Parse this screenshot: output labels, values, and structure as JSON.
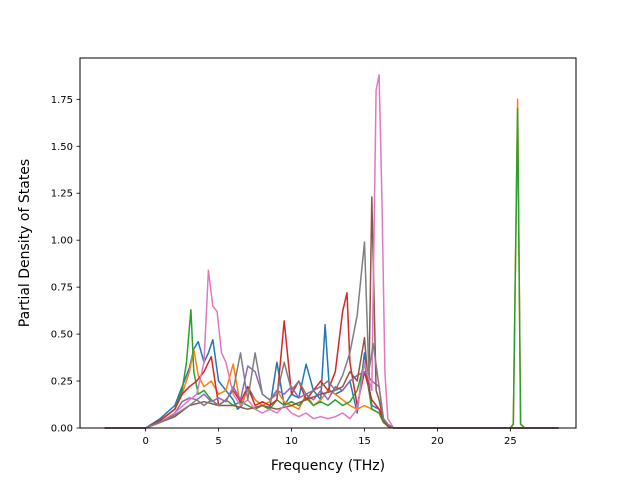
{
  "chart_data": {
    "type": "line",
    "title": "",
    "xlabel": "Frequency (THz)",
    "ylabel": "Partial Density of States",
    "xlim": [
      -4.5,
      29.5
    ],
    "ylim": [
      0,
      1.97
    ],
    "x_ticks": [
      0,
      5,
      10,
      15,
      20,
      25
    ],
    "y_ticks": [
      0.0,
      0.25,
      0.5,
      0.75,
      1.0,
      1.25,
      1.5,
      1.75
    ],
    "x_tick_labels": [
      "0",
      "5",
      "10",
      "15",
      "20",
      "25"
    ],
    "y_tick_labels": [
      "0.00",
      "0.25",
      "0.50",
      "0.75",
      "1.00",
      "1.25",
      "1.50",
      "1.75"
    ],
    "grid": false,
    "legend": "none",
    "series": [
      {
        "color": "#1f77b4",
        "x": [
          -2.8,
          0,
          1,
          2,
          2.5,
          3,
          3.3,
          3.6,
          4,
          4.3,
          4.6,
          5,
          5.5,
          6,
          6.3,
          6.6,
          7,
          7.5,
          8,
          8.5,
          9,
          9.5,
          10,
          10.5,
          11,
          11.5,
          12,
          12.3,
          12.6,
          13,
          13.5,
          14,
          14.5,
          15,
          15.5,
          16,
          16.3,
          16.6,
          17,
          25,
          28.3
        ],
        "y": [
          0,
          0,
          0.05,
          0.12,
          0.22,
          0.32,
          0.42,
          0.46,
          0.35,
          0.4,
          0.47,
          0.25,
          0.2,
          0.15,
          0.1,
          0.12,
          0.22,
          0.15,
          0.12,
          0.1,
          0.35,
          0.12,
          0.18,
          0.16,
          0.34,
          0.2,
          0.15,
          0.55,
          0.2,
          0.18,
          0.2,
          0.25,
          0.08,
          0.4,
          0.12,
          0.1,
          0.05,
          0.02,
          0,
          0,
          0
        ]
      },
      {
        "color": "#ff7f0e",
        "x": [
          -2.8,
          0,
          1,
          2,
          2.5,
          3,
          3.3,
          3.6,
          4,
          4.5,
          5,
          5.5,
          6,
          6.5,
          7,
          7.5,
          8,
          8.5,
          9,
          9.5,
          10,
          10.5,
          11,
          11.5,
          12,
          12.5,
          13,
          13.5,
          14,
          14.5,
          15,
          15.5,
          16,
          16.3,
          16.6,
          17,
          25,
          25.2,
          25.5,
          25.7,
          26,
          28.3
        ],
        "y": [
          0,
          0,
          0.04,
          0.1,
          0.18,
          0.3,
          0.42,
          0.28,
          0.22,
          0.25,
          0.18,
          0.2,
          0.34,
          0.12,
          0.2,
          0.15,
          0.12,
          0.14,
          0.2,
          0.14,
          0.12,
          0.1,
          0.18,
          0.12,
          0.15,
          0.2,
          0.18,
          0.15,
          0.12,
          0.1,
          0.12,
          0.1,
          0.08,
          0.03,
          0.01,
          0,
          0,
          0.02,
          1.75,
          0.02,
          0,
          0
        ]
      },
      {
        "color": "#2ca02c",
        "x": [
          -2.8,
          0,
          1,
          2,
          2.5,
          2.8,
          3.1,
          3.3,
          3.6,
          4,
          4.5,
          5,
          5.5,
          6,
          6.5,
          7,
          7.5,
          8,
          8.5,
          9,
          9.5,
          10,
          10.5,
          11,
          11.5,
          12,
          12.5,
          13,
          13.5,
          14,
          14.5,
          15,
          15.5,
          16,
          16.3,
          16.6,
          17,
          25,
          25.2,
          25.5,
          25.7,
          26,
          28.3
        ],
        "y": [
          0,
          0,
          0.04,
          0.1,
          0.2,
          0.35,
          0.63,
          0.3,
          0.18,
          0.2,
          0.15,
          0.12,
          0.15,
          0.12,
          0.14,
          0.12,
          0.1,
          0.12,
          0.1,
          0.15,
          0.12,
          0.14,
          0.12,
          0.16,
          0.12,
          0.14,
          0.12,
          0.15,
          0.12,
          0.14,
          0.2,
          0.35,
          0.1,
          0.08,
          0.03,
          0.01,
          0,
          0,
          0.02,
          1.7,
          0.02,
          0,
          0
        ]
      },
      {
        "color": "#d62728",
        "x": [
          -2.8,
          0,
          1,
          2,
          2.5,
          3,
          3.5,
          4,
          4.5,
          5,
          5.5,
          6,
          6.5,
          7,
          7.5,
          8,
          8.5,
          9,
          9.5,
          10,
          10.5,
          11,
          11.5,
          12,
          12.5,
          13,
          13.5,
          13.8,
          14,
          14.5,
          15,
          15.5,
          16,
          16.3,
          16.6,
          17,
          28.3
        ],
        "y": [
          0,
          0,
          0.04,
          0.1,
          0.18,
          0.22,
          0.25,
          0.3,
          0.38,
          0.12,
          0.15,
          0.2,
          0.14,
          0.22,
          0.12,
          0.14,
          0.12,
          0.15,
          0.57,
          0.18,
          0.25,
          0.15,
          0.2,
          0.25,
          0.2,
          0.3,
          0.62,
          0.72,
          0.35,
          0.12,
          0.3,
          0.15,
          0.1,
          0.04,
          0.01,
          0,
          0
        ]
      },
      {
        "color": "#9467bd",
        "x": [
          -2.8,
          0,
          1,
          2,
          2.5,
          3,
          3.5,
          4,
          4.5,
          5,
          5.5,
          6,
          6.5,
          7,
          7.5,
          8,
          8.5,
          9,
          9.5,
          10,
          10.5,
          11,
          11.5,
          12,
          12.5,
          13,
          13.5,
          14,
          14.5,
          15,
          15.5,
          16,
          16.3,
          16.6,
          17,
          28.3
        ],
        "y": [
          0,
          0,
          0.03,
          0.08,
          0.14,
          0.16,
          0.15,
          0.18,
          0.14,
          0.16,
          0.14,
          0.22,
          0.15,
          0.33,
          0.3,
          0.18,
          0.15,
          0.2,
          0.18,
          0.22,
          0.16,
          0.18,
          0.15,
          0.2,
          0.15,
          0.22,
          0.2,
          0.25,
          0.28,
          0.3,
          0.25,
          0.22,
          0.05,
          0.02,
          0,
          0
        ]
      },
      {
        "color": "#8c564b",
        "x": [
          -2.8,
          0,
          1,
          2,
          3,
          4,
          5,
          6,
          7,
          8,
          9,
          10,
          11,
          12,
          13,
          13.5,
          14,
          14.5,
          15,
          15.3,
          15.5,
          15.8,
          16,
          16.3,
          16.6,
          17,
          28.3
        ],
        "y": [
          0,
          0,
          0.03,
          0.06,
          0.12,
          0.14,
          0.12,
          0.12,
          0.1,
          0.12,
          0.1,
          0.12,
          0.15,
          0.18,
          0.2,
          0.22,
          0.3,
          0.25,
          0.48,
          0.2,
          1.23,
          0.2,
          0.15,
          0.04,
          0.01,
          0,
          0
        ]
      },
      {
        "color": "#e377c2",
        "x": [
          -2.8,
          0,
          1,
          2,
          3,
          3.5,
          4,
          4.3,
          4.6,
          4.9,
          5.2,
          5.5,
          6,
          6.5,
          7,
          7.5,
          8,
          8.5,
          9,
          9.5,
          10,
          10.5,
          11,
          11.5,
          12,
          12.5,
          13,
          13.5,
          14,
          14.5,
          15,
          15.5,
          15.8,
          16,
          16.2,
          16.4,
          16.6,
          17,
          28.3
        ],
        "y": [
          0,
          0,
          0.03,
          0.08,
          0.15,
          0.18,
          0.35,
          0.84,
          0.65,
          0.62,
          0.4,
          0.35,
          0.18,
          0.12,
          0.15,
          0.1,
          0.08,
          0.1,
          0.08,
          0.12,
          0.08,
          0.06,
          0.08,
          0.05,
          0.06,
          0.05,
          0.06,
          0.08,
          0.05,
          0.1,
          0.35,
          0.2,
          1.8,
          1.88,
          1.2,
          0.3,
          0.05,
          0,
          0
        ]
      },
      {
        "color": "#7f7f7f",
        "x": [
          -2.8,
          0,
          1,
          2,
          3,
          3.5,
          4,
          4.5,
          5,
          5.5,
          6,
          6.5,
          7,
          7.5,
          8,
          8.5,
          9,
          9.5,
          10,
          10.5,
          11,
          11.5,
          12,
          12.5,
          13,
          13.5,
          14,
          14.5,
          15,
          15.3,
          15.6,
          16,
          16.3,
          16.6,
          17,
          28.3
        ],
        "y": [
          0,
          0,
          0.03,
          0.07,
          0.12,
          0.15,
          0.12,
          0.15,
          0.12,
          0.15,
          0.2,
          0.4,
          0.15,
          0.4,
          0.18,
          0.15,
          0.18,
          0.35,
          0.2,
          0.25,
          0.18,
          0.2,
          0.22,
          0.25,
          0.2,
          0.28,
          0.4,
          0.6,
          0.99,
          0.3,
          0.45,
          0.22,
          0.05,
          0.02,
          0,
          0
        ]
      }
    ]
  }
}
